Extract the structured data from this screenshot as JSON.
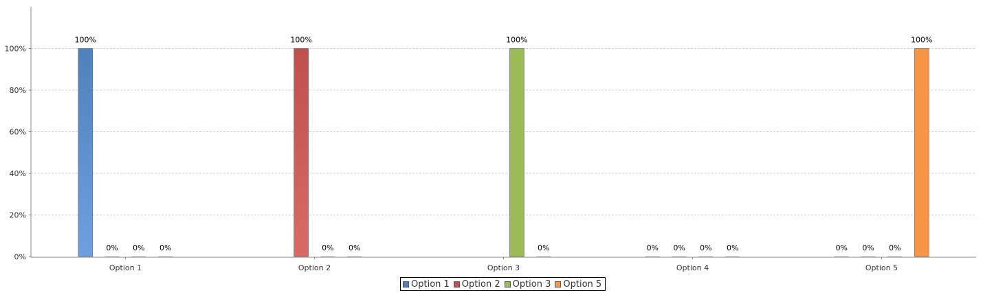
{
  "chart_data": {
    "type": "bar",
    "categories": [
      "Option 1",
      "Option 2",
      "Option 3",
      "Option 4",
      "Option 5"
    ],
    "series": [
      {
        "name": "Option 1",
        "color": "#4f81bd",
        "color_light": "#6f9fe0",
        "values": [
          100,
          null,
          null,
          0,
          0
        ]
      },
      {
        "name": "Option 2",
        "color": "#c0504d",
        "color_light": "#d96a66",
        "values": [
          0,
          100,
          null,
          0,
          0
        ]
      },
      {
        "name": "Option 3",
        "color": "#9bbb59",
        "color_light": "#9bbb59",
        "values": [
          0,
          0,
          100,
          0,
          0
        ]
      },
      {
        "name": "Option 5",
        "color": "#f79646",
        "color_light": "#f79646",
        "values": [
          0,
          0,
          0,
          0,
          100
        ]
      }
    ],
    "y_ticks": [
      "0%",
      "20%",
      "40%",
      "60%",
      "80%",
      "100%"
    ],
    "ylim": [
      0,
      120
    ],
    "grid": true,
    "legend_position": "bottom-center",
    "value_suffix": "%"
  }
}
